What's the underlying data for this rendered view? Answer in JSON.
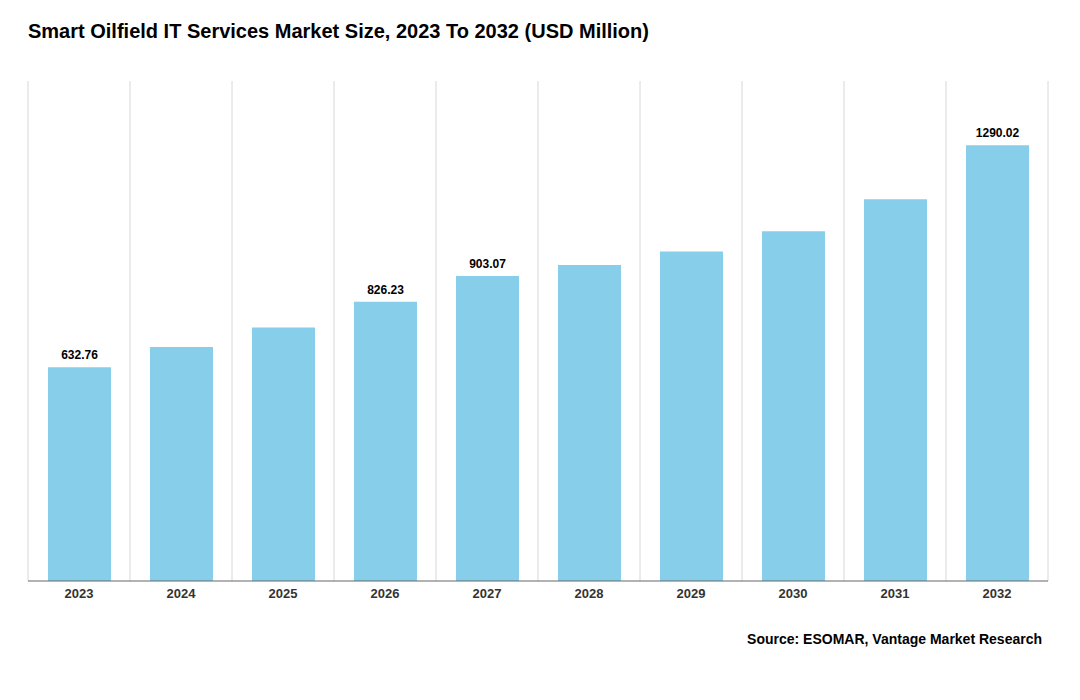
{
  "chart_data": {
    "type": "bar",
    "title": "Smart Oilfield IT Services Market Size, 2023 To 2032 (USD Million)",
    "categories": [
      "2023",
      "2024",
      "2025",
      "2026",
      "2027",
      "2028",
      "2029",
      "2030",
      "2031",
      "2032"
    ],
    "values": [
      632.76,
      693.0,
      750.0,
      826.23,
      903.07,
      935.0,
      975.0,
      1035.0,
      1130.0,
      1290.02
    ],
    "value_labels": [
      "632.76",
      null,
      null,
      "826.23",
      "903.07",
      null,
      null,
      null,
      null,
      "1290.02"
    ],
    "data_labels": true,
    "color": "#87CEEB",
    "ylim": [
      0,
      1480
    ],
    "grid": true,
    "tick_labels": "x",
    "annotations": [
      "Source: ESOMAR, Vantage Market Research"
    ]
  }
}
